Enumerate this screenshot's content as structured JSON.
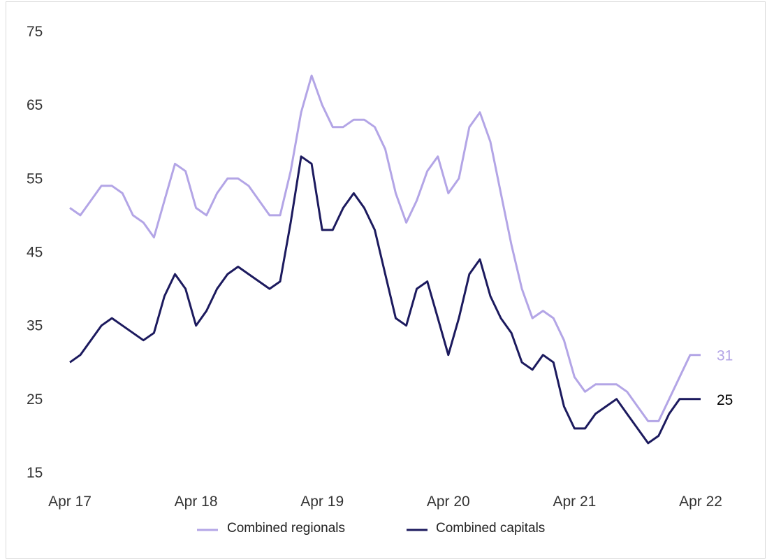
{
  "chart_data": {
    "type": "line",
    "title": "",
    "xlabel": "",
    "ylabel": "",
    "ylim": [
      15,
      75
    ],
    "yticks": [
      15,
      25,
      35,
      45,
      55,
      65,
      75
    ],
    "x_start": "Apr 17",
    "x_tick_labels": [
      "Apr 17",
      "Apr 18",
      "Apr 19",
      "Apr 20",
      "Apr 21",
      "Apr 22"
    ],
    "x_tick_index": [
      0,
      12,
      24,
      36,
      48,
      60
    ],
    "grid": false,
    "legend_position": "bottom",
    "series": [
      {
        "name": "Combined regionals",
        "color": "#b3a5e6",
        "end_label": "31",
        "values": [
          51,
          50,
          52,
          54,
          54,
          53,
          50,
          49,
          47,
          52,
          57,
          56,
          51,
          50,
          53,
          55,
          55,
          54,
          52,
          50,
          50,
          56,
          64,
          69,
          65,
          62,
          62,
          63,
          63,
          62,
          59,
          53,
          49,
          52,
          56,
          58,
          53,
          55,
          62,
          64,
          60,
          53,
          46,
          40,
          36,
          37,
          36,
          33,
          28,
          26,
          27,
          27,
          27,
          26,
          24,
          22,
          22,
          25,
          28,
          31,
          31
        ]
      },
      {
        "name": "Combined capitals",
        "color": "#1c1a5e",
        "end_label": "25",
        "values": [
          30,
          31,
          33,
          35,
          36,
          35,
          34,
          33,
          34,
          39,
          42,
          40,
          35,
          37,
          40,
          42,
          43,
          42,
          41,
          40,
          41,
          49,
          58,
          57,
          48,
          48,
          51,
          53,
          51,
          48,
          42,
          36,
          35,
          40,
          41,
          36,
          31,
          36,
          42,
          44,
          39,
          36,
          34,
          30,
          29,
          31,
          30,
          24,
          21,
          21,
          23,
          24,
          25,
          23,
          21,
          19,
          20,
          23,
          25,
          25,
          25
        ]
      }
    ]
  }
}
